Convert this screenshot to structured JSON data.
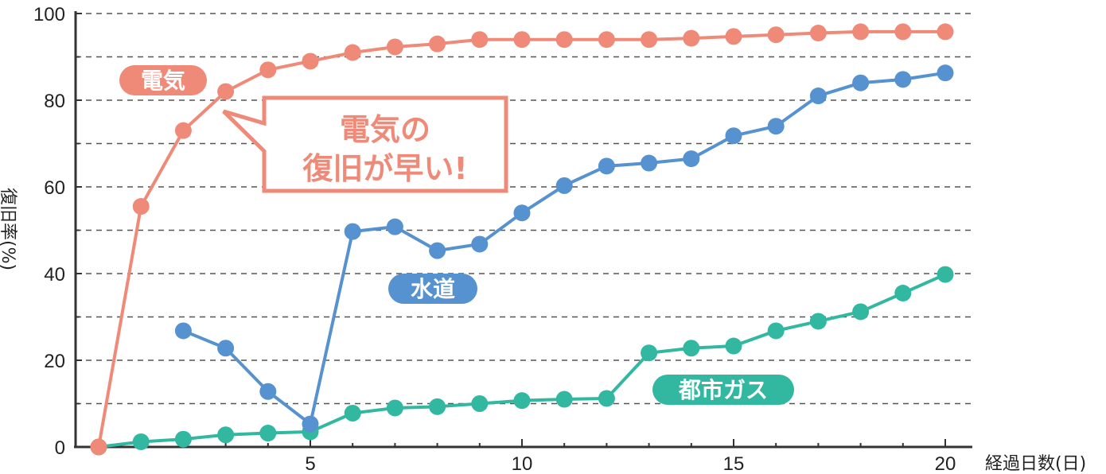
{
  "chart_data": {
    "type": "line",
    "x": [
      0,
      1,
      2,
      3,
      4,
      5,
      6,
      7,
      8,
      9,
      10,
      11,
      12,
      13,
      14,
      15,
      16,
      17,
      18,
      19,
      20
    ],
    "xticks": [
      "5",
      "10",
      "15",
      "20"
    ],
    "yticks": [
      "0",
      "20",
      "40",
      "60",
      "80",
      "100"
    ],
    "xlim": [
      0,
      20
    ],
    "ylim": [
      0,
      100
    ],
    "xlabel": "経過日数(日)",
    "ylabel": "復旧率(%)",
    "grid": "horizontal dashed every 10",
    "series": [
      {
        "name": "電気",
        "color": "#f08a78",
        "x": [
          0,
          1,
          2,
          3,
          4,
          5,
          6,
          7,
          8,
          9,
          10,
          11,
          12,
          13,
          14,
          15,
          16,
          17,
          18,
          19,
          20
        ],
        "values": [
          0,
          55.5,
          73,
          82,
          87,
          89,
          91,
          92.3,
          93,
          94,
          94,
          94,
          94,
          94,
          94.3,
          94.7,
          95.1,
          95.5,
          95.8,
          95.8,
          95.8
        ]
      },
      {
        "name": "水道",
        "color": "#5592cf",
        "x": [
          2,
          3,
          4,
          5,
          6,
          7,
          8,
          9,
          10,
          11,
          12,
          13,
          14,
          15,
          16,
          17,
          18,
          19,
          20
        ],
        "values": [
          26.8,
          22.8,
          12.8,
          5.3,
          49.7,
          50.8,
          45.3,
          46.8,
          54,
          60.3,
          64.8,
          65.5,
          66.5,
          71.8,
          74,
          81,
          84,
          84.8,
          86.3
        ]
      },
      {
        "name": "都市ガス",
        "color": "#32b8a0",
        "x": [
          0,
          1,
          2,
          3,
          4,
          5,
          6,
          7,
          8,
          9,
          10,
          11,
          12,
          13,
          14,
          15,
          16,
          17,
          18,
          19,
          20
        ],
        "values": [
          0,
          1.2,
          1.8,
          2.8,
          3.2,
          3.5,
          7.8,
          9,
          9.3,
          10,
          10.7,
          11,
          11.2,
          21.7,
          22.8,
          23.3,
          26.8,
          29,
          31.2,
          35.5,
          39.8
        ]
      }
    ],
    "callout": {
      "line1": "電気の",
      "line2": "復旧が早い!",
      "border_color": "#f08a78",
      "text_color": "#f08a78"
    }
  }
}
